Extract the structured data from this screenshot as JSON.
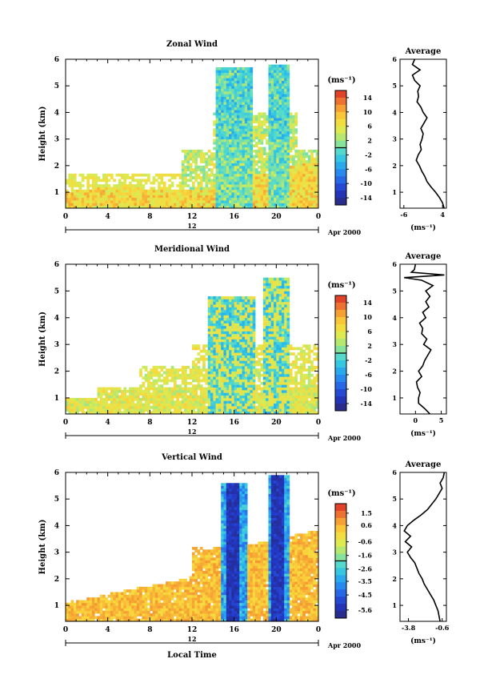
{
  "figure": {
    "date_label": "Apr 2000",
    "date_axis_label": "12",
    "local_time_label": "Local Time"
  },
  "chart_data": [
    {
      "type": "heatmap",
      "title": "Zonal Wind",
      "ylabel": "Height (km)",
      "x_ticks": [
        "0",
        "4",
        "8",
        "12",
        "16",
        "20",
        "0"
      ],
      "y_ticks": [
        "1",
        "2",
        "3",
        "4",
        "5",
        "6"
      ],
      "xlim": [
        0,
        24
      ],
      "ylim": [
        0.4,
        6.0
      ],
      "colorbar": {
        "unit_label": "(ms⁻¹)",
        "tick_labels": [
          "14",
          "10",
          "6",
          "2",
          "-2",
          "-6",
          "-10",
          "-14"
        ],
        "tick_values": [
          14,
          10,
          6,
          2,
          -2,
          -6,
          -10,
          -14
        ],
        "range": [
          -16,
          16
        ]
      },
      "average": {
        "title": "Average",
        "x_ticks": [
          "-6",
          "4"
        ],
        "x_tick_values": [
          -6,
          4
        ],
        "xlim": [
          -7,
          5
        ],
        "xlabel": "(ms⁻¹)",
        "profile_heights": [
          0.4,
          0.6,
          0.8,
          1.0,
          1.2,
          1.4,
          1.6,
          1.8,
          2.0,
          2.2,
          2.4,
          2.6,
          2.8,
          3.0,
          3.2,
          3.4,
          3.6,
          3.8,
          4.0,
          4.2,
          4.4,
          4.6,
          4.8,
          5.0,
          5.2,
          5.4,
          5.6,
          5.8,
          6.0
        ],
        "profile_values": [
          4.4,
          4.0,
          3.2,
          2.2,
          1.0,
          0.0,
          -0.6,
          -1.4,
          -2.0,
          -2.8,
          -2.3,
          -1.5,
          -1.8,
          -1.3,
          -1.0,
          -1.6,
          -0.8,
          0.0,
          -1.0,
          -1.6,
          -2.6,
          -2.2,
          -2.4,
          -1.8,
          -3.2,
          -3.8,
          -1.8,
          -3.8,
          -3.2
        ]
      },
      "field": "zonal"
    },
    {
      "type": "heatmap",
      "title": "Meridional Wind",
      "ylabel": "Height (km)",
      "x_ticks": [
        "0",
        "4",
        "8",
        "12",
        "16",
        "20",
        "0"
      ],
      "y_ticks": [
        "1",
        "2",
        "3",
        "4",
        "5",
        "6"
      ],
      "xlim": [
        0,
        24
      ],
      "ylim": [
        0.4,
        6.0
      ],
      "colorbar": {
        "unit_label": "(ms⁻¹)",
        "tick_labels": [
          "14",
          "10",
          "6",
          "2",
          "-2",
          "-6",
          "-10",
          "-14"
        ],
        "tick_values": [
          14,
          10,
          6,
          2,
          -2,
          -6,
          -10,
          -14
        ],
        "range": [
          -16,
          16
        ]
      },
      "average": {
        "title": "Average",
        "x_ticks": [
          "0",
          "5"
        ],
        "x_tick_values": [
          0,
          5
        ],
        "xlim": [
          -3,
          6
        ],
        "xlabel": "(ms⁻¹)",
        "profile_heights": [
          0.4,
          0.6,
          0.8,
          1.0,
          1.2,
          1.4,
          1.6,
          1.8,
          2.0,
          2.2,
          2.4,
          2.6,
          2.8,
          3.0,
          3.2,
          3.4,
          3.6,
          3.8,
          4.0,
          4.2,
          4.4,
          4.6,
          4.8,
          5.0,
          5.2,
          5.4,
          5.5,
          5.6,
          5.7,
          5.8,
          6.0
        ],
        "profile_values": [
          2.8,
          1.8,
          0.6,
          0.6,
          0.9,
          0.4,
          0.2,
          1.2,
          0.6,
          1.4,
          1.8,
          2.4,
          3.0,
          1.6,
          2.2,
          1.2,
          1.4,
          0.8,
          2.0,
          1.4,
          2.6,
          2.0,
          2.8,
          2.0,
          3.4,
          1.2,
          -2.2,
          5.6,
          -0.8,
          -0.2,
          0.0
        ]
      },
      "field": "meridional"
    },
    {
      "type": "heatmap",
      "title": "Vertical Wind",
      "ylabel": "Height (km)",
      "xlabel": "Local Time",
      "x_ticks": [
        "0",
        "4",
        "8",
        "12",
        "16",
        "20",
        "0"
      ],
      "y_ticks": [
        "1",
        "2",
        "3",
        "4",
        "5",
        "6"
      ],
      "xlim": [
        0,
        24
      ],
      "ylim": [
        0.4,
        6.0
      ],
      "colorbar": {
        "unit_label": "(ms⁻¹)",
        "tick_labels": [
          "1.5",
          "0.6",
          "-0.6",
          "-1.6",
          "-2.6",
          "-3.5",
          "-4.5",
          "-5.6"
        ],
        "tick_values": [
          1.5,
          0.6,
          -0.6,
          -1.6,
          -2.6,
          -3.5,
          -4.5,
          -5.6
        ],
        "range": [
          -6.2,
          2.2
        ]
      },
      "average": {
        "title": "Average",
        "x_ticks": [
          "-3.8",
          "-0.6"
        ],
        "x_tick_values": [
          -3.8,
          -0.6
        ],
        "xlim": [
          -4.6,
          -0.2
        ],
        "xlabel": "(ms⁻¹)",
        "profile_heights": [
          0.4,
          0.6,
          0.8,
          1.0,
          1.2,
          1.4,
          1.6,
          1.8,
          2.0,
          2.2,
          2.4,
          2.6,
          2.8,
          3.0,
          3.2,
          3.4,
          3.6,
          3.8,
          4.0,
          4.2,
          4.4,
          4.6,
          4.8,
          5.0,
          5.2,
          5.4,
          5.6,
          5.8,
          6.0
        ],
        "profile_values": [
          -0.8,
          -0.9,
          -1.0,
          -1.2,
          -1.4,
          -1.7,
          -2.0,
          -2.3,
          -2.5,
          -2.8,
          -3.0,
          -3.2,
          -3.6,
          -3.9,
          -3.5,
          -4.1,
          -3.6,
          -4.2,
          -3.9,
          -3.3,
          -2.6,
          -2.0,
          -1.6,
          -1.2,
          -0.9,
          -0.6,
          -0.8,
          -0.5,
          -0.4
        ]
      },
      "field": "vertical"
    }
  ]
}
